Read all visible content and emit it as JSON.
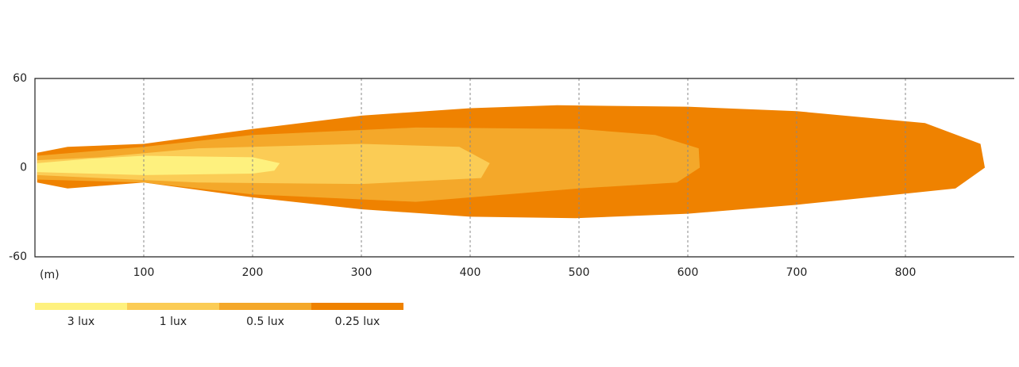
{
  "chart_data": {
    "type": "isolux",
    "x_label": "(m)",
    "xlim": [
      0,
      900
    ],
    "xticks": [
      100,
      200,
      300,
      400,
      500,
      600,
      700,
      800
    ],
    "ylim": [
      -60,
      60
    ],
    "yticks": [
      60,
      0,
      -60
    ],
    "grid": true,
    "series": [
      {
        "name": "3 lux",
        "color": "#fef17e",
        "x": [
          2,
          50,
          100,
          200,
          225,
          220,
          200,
          100,
          50,
          2
        ],
        "y": [
          3,
          6,
          8,
          7,
          3,
          -2,
          -4,
          -5,
          -4,
          -3
        ]
      },
      {
        "name": "1 lux",
        "color": "#fbcc55",
        "x": [
          2,
          60,
          150,
          300,
          390,
          418,
          410,
          300,
          150,
          60,
          2
        ],
        "y": [
          5,
          7,
          13,
          16,
          14,
          3,
          -7,
          -11,
          -10,
          -7,
          -5
        ]
      },
      {
        "name": "0.5 lux",
        "color": "#f4a82a",
        "x": [
          2,
          100,
          200,
          350,
          500,
          570,
          610,
          611,
          590,
          500,
          350,
          200,
          100,
          2
        ],
        "y": [
          8,
          14,
          22,
          27,
          26,
          22,
          13,
          0,
          -10,
          -14,
          -23,
          -18,
          -10,
          -8
        ]
      },
      {
        "name": "0.25 lux",
        "color": "#ef8200",
        "x": [
          2,
          30,
          100,
          200,
          300,
          400,
          480,
          600,
          700,
          818,
          869,
          873,
          846,
          700,
          600,
          497,
          400,
          300,
          200,
          100,
          30,
          2
        ],
        "y": [
          10,
          14,
          16,
          26,
          35,
          40,
          42,
          41,
          38,
          30,
          16,
          0,
          -14,
          -25,
          -31,
          -34,
          -33,
          -28,
          -20,
          -10,
          -14,
          -10
        ]
      }
    ]
  }
}
